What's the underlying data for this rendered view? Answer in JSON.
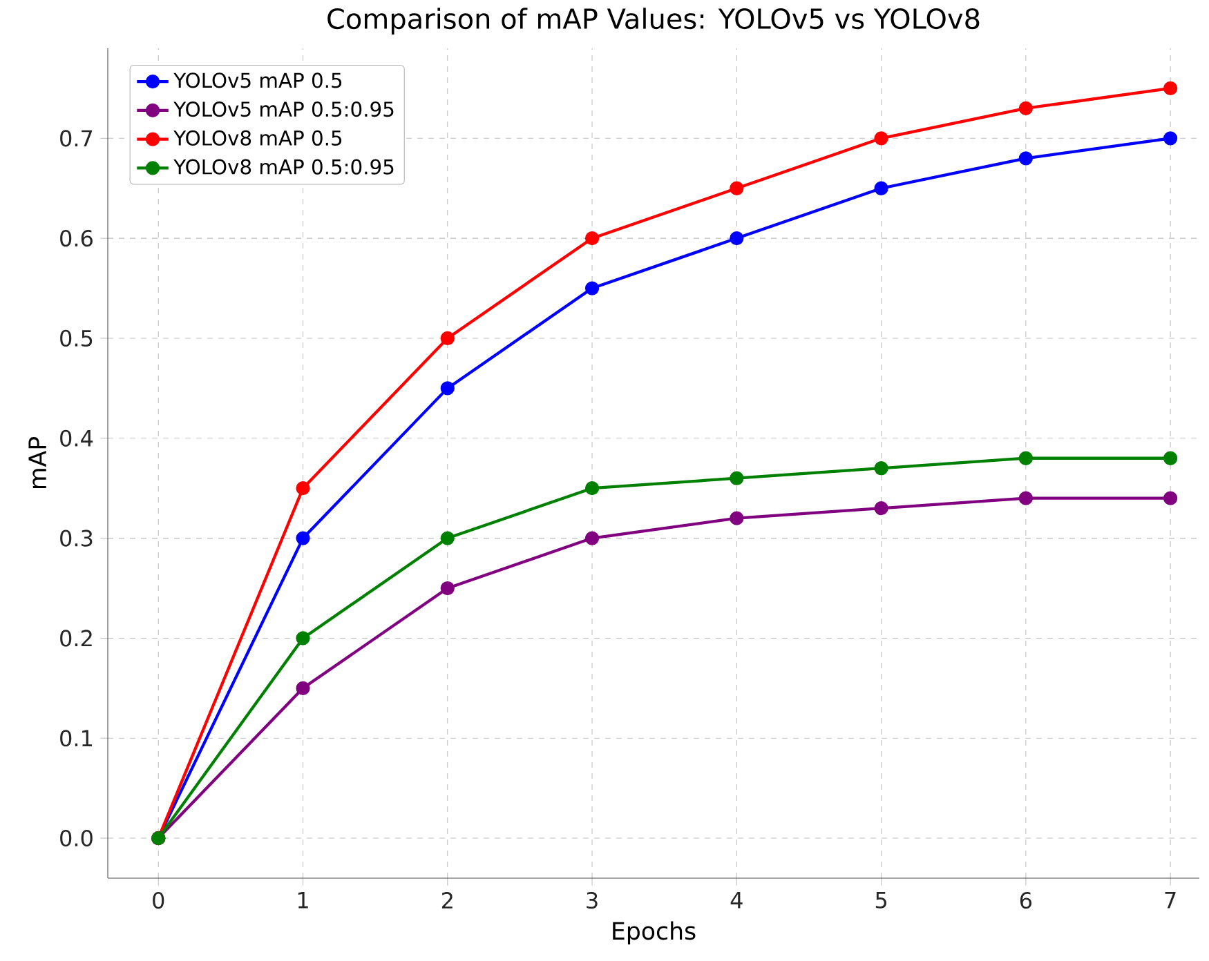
{
  "chart_data": {
    "type": "line",
    "title": "Comparison of mAP Values: YOLOv5 vs YOLOv8",
    "xlabel": "Epochs",
    "ylabel": "mAP",
    "x": [
      0,
      1,
      2,
      3,
      4,
      5,
      6,
      7
    ],
    "series": [
      {
        "name": "YOLOv5 mAP 0.5",
        "color": "#0000ff",
        "values": [
          0,
          0.3,
          0.45,
          0.55,
          0.6,
          0.65,
          0.68,
          0.7
        ]
      },
      {
        "name": "YOLOv5 mAP 0.5:0.95",
        "color": "#800080",
        "values": [
          0,
          0.15,
          0.25,
          0.3,
          0.32,
          0.33,
          0.34,
          0.34
        ]
      },
      {
        "name": "YOLOv8 mAP 0.5",
        "color": "#ff0000",
        "values": [
          0,
          0.35,
          0.5,
          0.6,
          0.65,
          0.7,
          0.73,
          0.75
        ]
      },
      {
        "name": "YOLOv8 mAP 0.5:0.95",
        "color": "#008000",
        "values": [
          0,
          0.2,
          0.3,
          0.35,
          0.36,
          0.37,
          0.38,
          0.38
        ]
      }
    ],
    "xlim": [
      -0.35,
      7.2
    ],
    "ylim": [
      -0.04,
      0.79
    ],
    "xticks": [
      0,
      1,
      2,
      3,
      4,
      5,
      6,
      7
    ],
    "yticks": [
      {
        "value": 0,
        "label": "0.0"
      },
      {
        "value": 0.1,
        "label": "0.1"
      },
      {
        "value": 0.2,
        "label": "0.2"
      },
      {
        "value": 0.3,
        "label": "0.3"
      },
      {
        "value": 0.4,
        "label": "0.4"
      },
      {
        "value": 0.5,
        "label": "0.5"
      },
      {
        "value": 0.6,
        "label": "0.6"
      },
      {
        "value": 0.7,
        "label": "0.7"
      }
    ],
    "grid": true,
    "legend": "top left",
    "marker": "circle",
    "line_style": "solid"
  }
}
